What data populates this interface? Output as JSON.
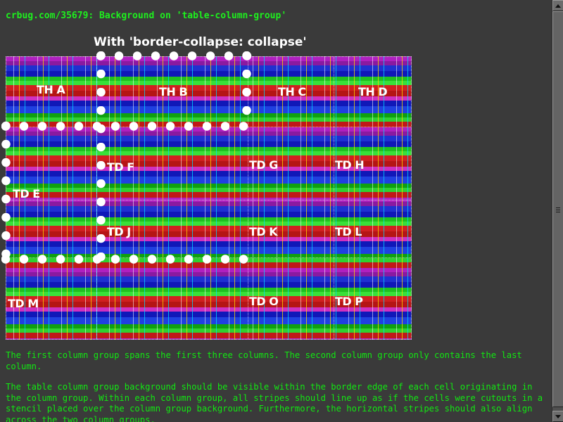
{
  "heading": "crbug.com/35679: Background on 'table-column-group'",
  "subtitle": "With 'border-collapse: collapse'",
  "cells": {
    "th_a": "TH A",
    "th_b": "TH B",
    "th_c": "TH C",
    "th_d": "TH D",
    "td_e": "TD E",
    "td_f": "TD F",
    "td_g": "TD G",
    "td_h": "TD H",
    "td_j": "TD J",
    "td_k": "TD K",
    "td_l": "TD L",
    "td_m": "TD M",
    "td_o": "TD O",
    "td_p": "TD P"
  },
  "paragraphs": [
    "The first column group spans the first three columns. The second column group only contains the last column.",
    "The table column group background should be visible within the border edge of each cell originating in the column group. Within each column group, all stripes should line up as if the cells were cutouts in a stencil placed over the column group background. Furthermore, the horizontal stripes should also align across the two column groups."
  ],
  "colors": {
    "page_background": "#3a3a3a",
    "text_green": "#12e812",
    "label_white": "#ffffff",
    "stripe_magenta": "#b020c0",
    "stripe_blue": "#2030d0",
    "stripe_green": "#20c020",
    "stripe_red": "#d02020"
  },
  "icons": {
    "scroll_up": "arrow-up-icon",
    "scroll_down": "arrow-down-icon"
  }
}
